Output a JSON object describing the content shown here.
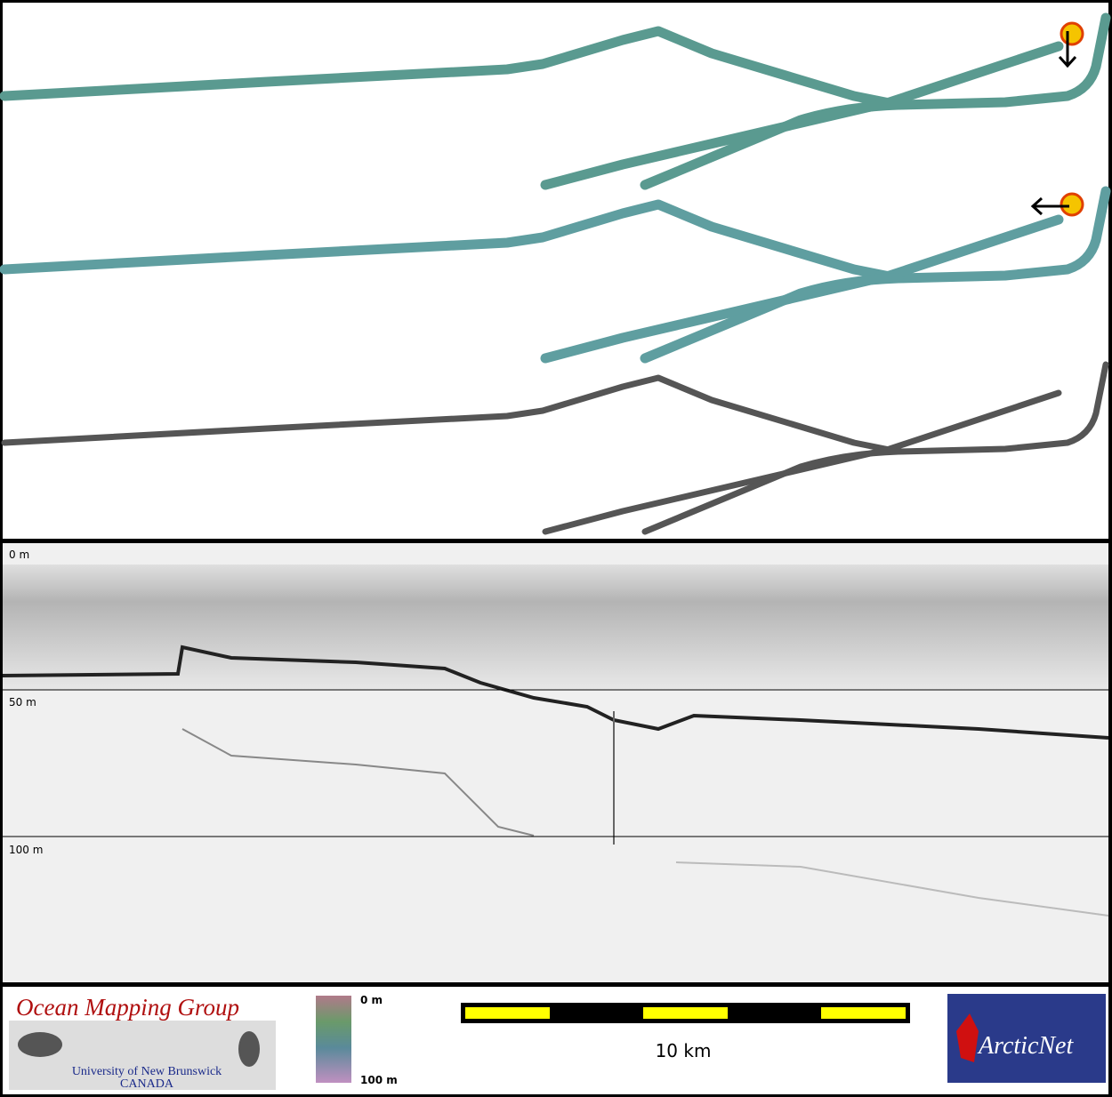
{
  "depth_labels": [
    "0 m",
    "50 m",
    "100 m"
  ],
  "logo": {
    "title": "Ocean Mapping Group",
    "line1": "University of New Brunswick",
    "line2": "CANADA"
  },
  "color_scale": {
    "top": "0 m",
    "bottom": "100 m"
  },
  "scale_bar": {
    "label": "10 km"
  },
  "partner_logo": {
    "name": "ArcticNet"
  }
}
